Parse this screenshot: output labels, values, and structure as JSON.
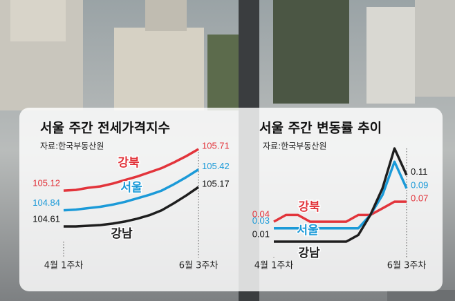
{
  "chart_data": [
    {
      "type": "line",
      "title": "서울 주간 전세가격지수",
      "subtitle": "자료:한국부동산원",
      "categories": [
        "4월 1주차",
        null,
        null,
        null,
        null,
        null,
        null,
        null,
        null,
        null,
        null,
        "6월 3주차"
      ],
      "series": [
        {
          "name": "강북",
          "color": "#e2343b",
          "values": [
            105.12,
            105.13,
            105.16,
            105.18,
            105.22,
            105.27,
            105.32,
            105.38,
            105.44,
            105.52,
            105.61,
            105.71
          ]
        },
        {
          "name": "서울",
          "color": "#1b9ad8",
          "values": [
            104.84,
            104.85,
            104.87,
            104.89,
            104.92,
            104.96,
            105.01,
            105.06,
            105.12,
            105.21,
            105.31,
            105.42
          ]
        },
        {
          "name": "강남",
          "color": "#1e1e1e",
          "values": [
            104.61,
            104.61,
            104.62,
            104.63,
            104.65,
            104.68,
            104.72,
            104.77,
            104.84,
            104.94,
            105.05,
            105.17
          ]
        }
      ]
    },
    {
      "type": "line",
      "title": "서울 주간 변동률 추이",
      "subtitle": "자료:한국부동산원",
      "categories": [
        "4월 1주차",
        null,
        null,
        null,
        null,
        null,
        null,
        null,
        null,
        null,
        null,
        "6월 3주차"
      ],
      "series": [
        {
          "name": "강북",
          "color": "#e2343b",
          "values": [
            0.04,
            0.05,
            0.05,
            0.04,
            0.04,
            0.04,
            0.04,
            0.05,
            0.05,
            0.06,
            0.07,
            0.07
          ]
        },
        {
          "name": "서울",
          "color": "#1b9ad8",
          "values": [
            0.03,
            0.03,
            0.03,
            0.03,
            0.03,
            0.03,
            0.03,
            0.03,
            0.05,
            0.08,
            0.13,
            0.09
          ]
        },
        {
          "name": "강남",
          "color": "#1e1e1e",
          "values": [
            0.01,
            0.01,
            0.01,
            0.01,
            0.01,
            0.01,
            0.01,
            0.02,
            0.05,
            0.09,
            0.15,
            0.11
          ]
        }
      ]
    }
  ]
}
